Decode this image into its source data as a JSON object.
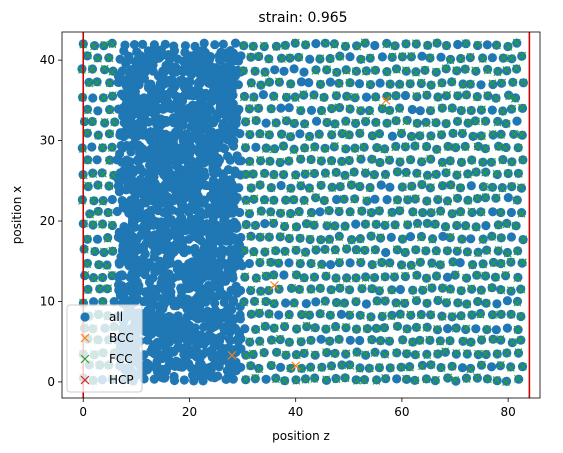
{
  "chart_data": {
    "type": "scatter",
    "title": "strain: 0.965",
    "xlabel": "position z",
    "ylabel": "position x",
    "xlim": [
      -4,
      86
    ],
    "ylim": [
      -2,
      43.5
    ],
    "xticks": [
      0,
      20,
      40,
      60,
      80
    ],
    "yticks": [
      0,
      10,
      20,
      30,
      40
    ],
    "grid": false,
    "legend_position": "lower-left",
    "boundaries": {
      "color": "#cc0000",
      "x": [
        0,
        84
      ]
    },
    "series": [
      {
        "name": "all",
        "marker": "circle",
        "color": "#1f77b4"
      },
      {
        "name": "BCC",
        "marker": "x",
        "color": "#ff7f0e",
        "points": [
          [
            28,
            3.3
          ],
          [
            36,
            12
          ],
          [
            40,
            2
          ],
          [
            57,
            35
          ]
        ]
      },
      {
        "name": "FCC",
        "marker": "x",
        "color": "#2ca02c"
      },
      {
        "name": "HCP",
        "marker": "x",
        "color": "#d62728",
        "points": []
      }
    ]
  }
}
